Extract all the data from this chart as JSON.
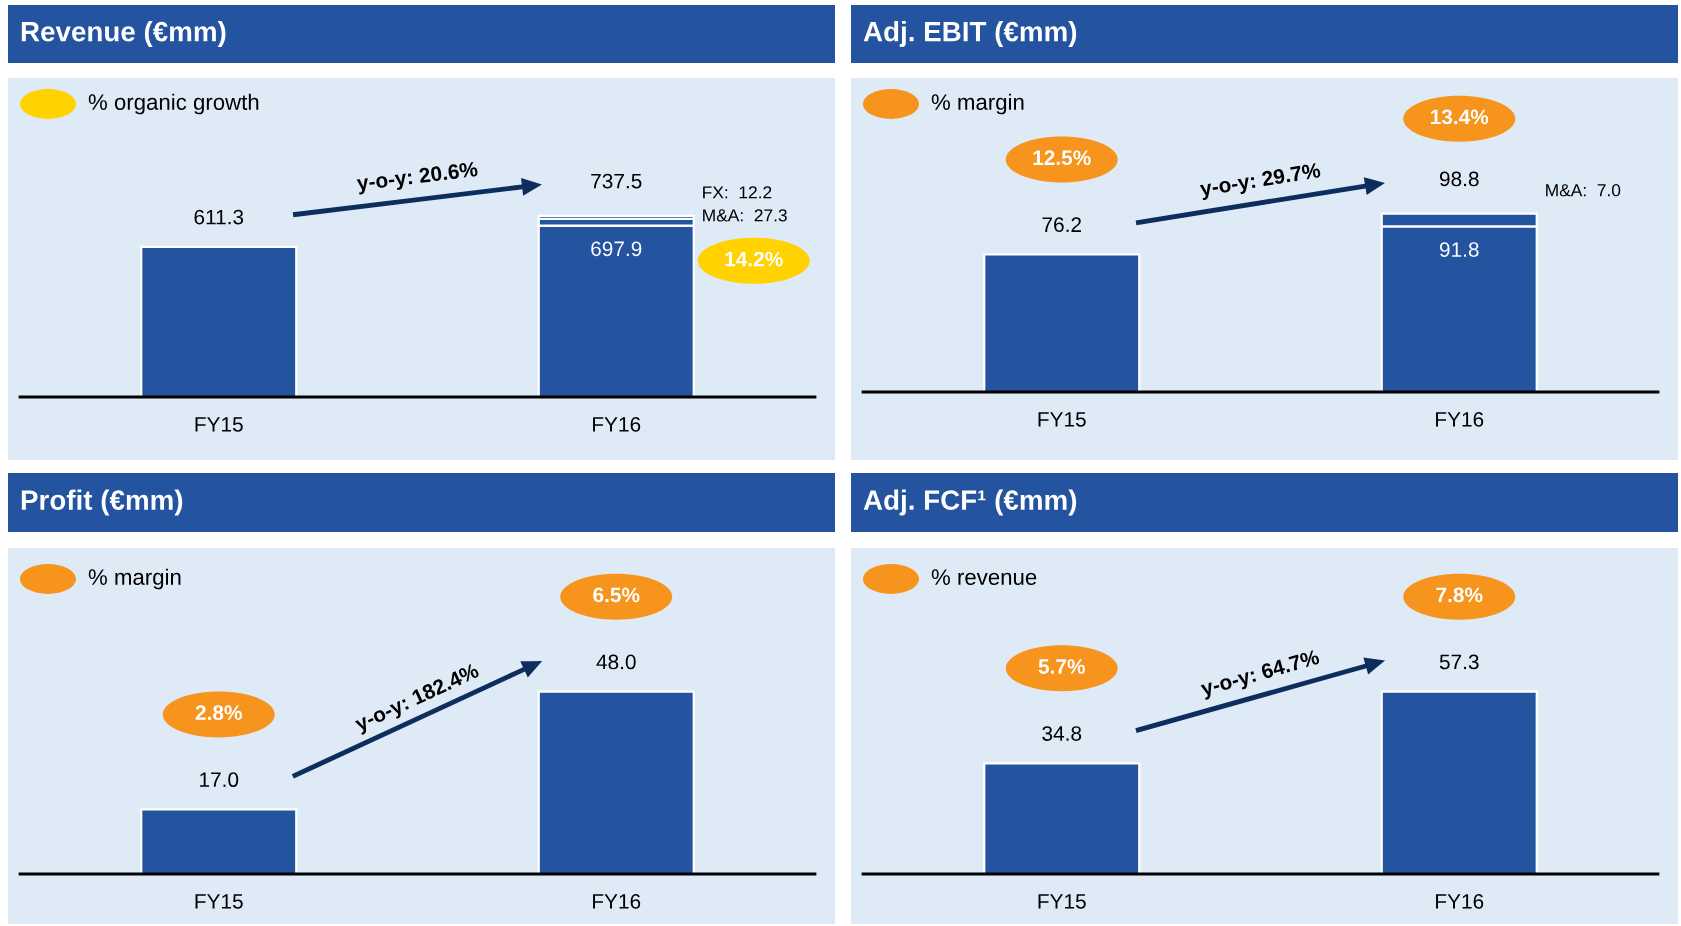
{
  "chart_data": [
    {
      "type": "bar",
      "title": "Revenue (€mm)",
      "categories": [
        "FY15",
        "FY16"
      ],
      "stacked": true,
      "tick_labels": "x",
      "legend_title": "% organic growth",
      "color": "#ffd200",
      "series": [
        {
          "color": "#2453a0",
          "values": [
            611.3,
            697.9
          ],
          "value_labels": [
            "611.3",
            "697.9"
          ]
        },
        {
          "name": "M&A:",
          "color": "#2453a0",
          "values": [
            null,
            27.3
          ],
          "value_labels": [
            null,
            "27.3"
          ]
        },
        {
          "name": "FX:",
          "color": "#2453a0",
          "values": [
            null,
            12.2
          ],
          "value_labels": [
            null,
            "12.2"
          ]
        }
      ],
      "totals": [
        null,
        "737.5"
      ],
      "annotations": [
        "y-o-y: 20.6%",
        "14.2%"
      ]
    },
    {
      "type": "bar",
      "title": "Adj. EBIT (€mm)",
      "categories": [
        "FY15",
        "FY16"
      ],
      "stacked": true,
      "tick_labels": "x",
      "legend_title": "% margin",
      "color": "#f7941d",
      "series": [
        {
          "color": "#2453a0",
          "values": [
            76.2,
            91.8
          ],
          "value_labels": [
            "76.2",
            "91.8"
          ]
        },
        {
          "name": "M&A:",
          "color": "#2453a0",
          "values": [
            null,
            7.0
          ],
          "value_labels": [
            null,
            "7.0"
          ]
        }
      ],
      "totals": [
        null,
        "98.8"
      ],
      "annotations": [
        "y-o-y: 29.7%",
        "12.5%",
        "13.4%"
      ]
    },
    {
      "type": "bar",
      "title": "Profit (€mm)",
      "categories": [
        "FY15",
        "FY16"
      ],
      "tick_labels": "x",
      "legend_title": "% margin",
      "color": "#f7941d",
      "series": [
        {
          "color": "#2453a0",
          "values": [
            17.0,
            48.0
          ],
          "value_labels": [
            "17.0",
            "48.0"
          ]
        }
      ],
      "annotations": [
        "y-o-y: 182.4%",
        "2.8%",
        "6.5%"
      ]
    },
    {
      "type": "bar",
      "title": "Adj. FCF¹ (€mm)",
      "categories": [
        "FY15",
        "FY16"
      ],
      "tick_labels": "x",
      "legend_title": "% revenue",
      "color": "#f7941d",
      "series": [
        {
          "color": "#2453a0",
          "values": [
            34.8,
            57.3
          ],
          "value_labels": [
            "34.8",
            "57.3"
          ]
        }
      ],
      "annotations": [
        "y-o-y: 64.7%",
        "5.7%",
        "7.8%"
      ]
    }
  ]
}
